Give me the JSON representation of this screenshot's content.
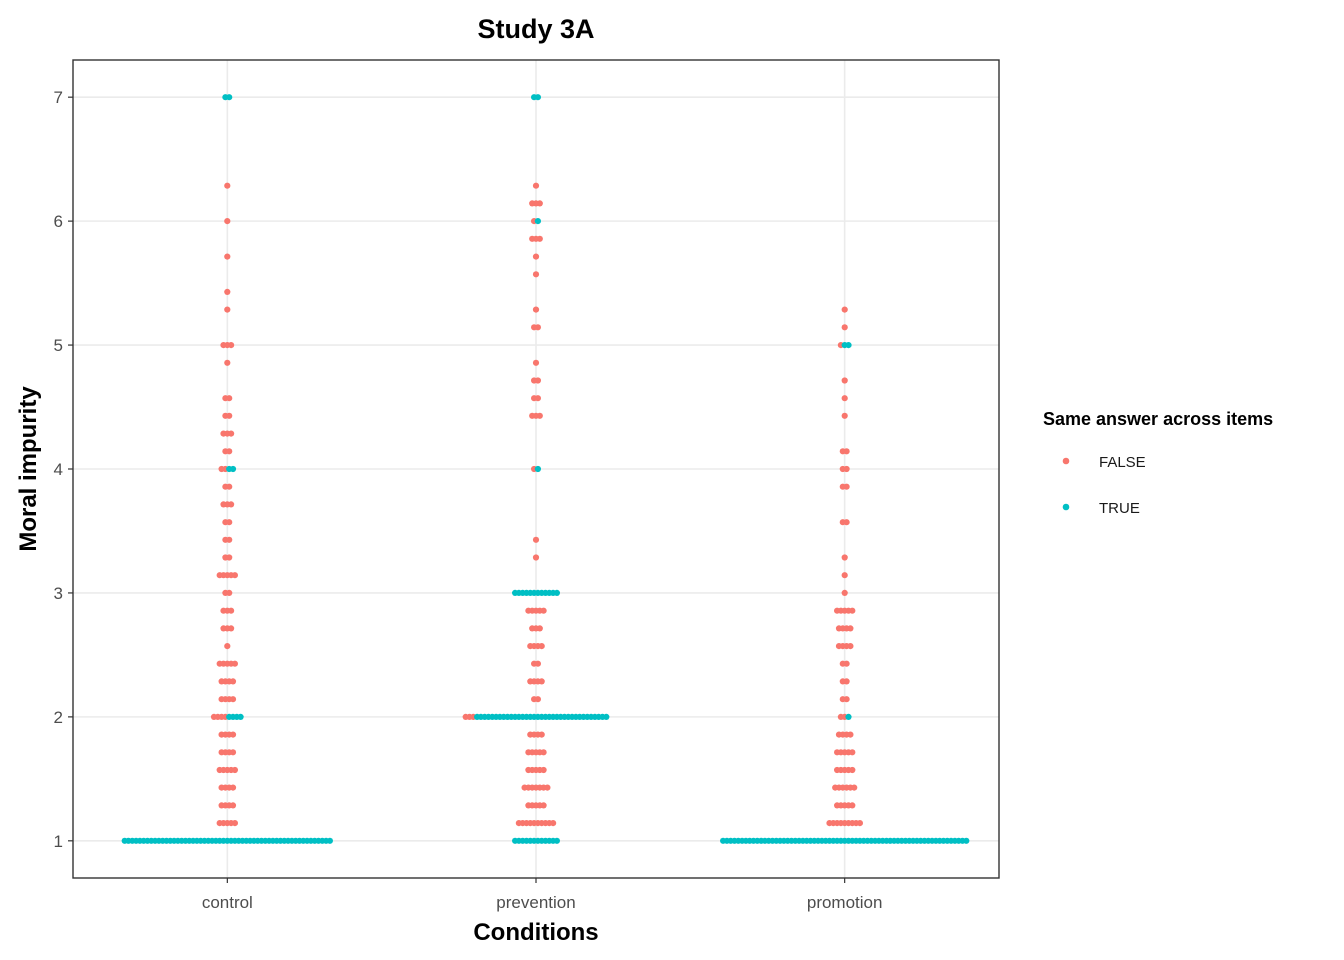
{
  "chart_data": {
    "type": "scatter",
    "subtype": "dotplot",
    "title": "Study 3A",
    "xlabel": "Conditions",
    "ylabel": "Moral impurity",
    "categories": [
      "control",
      "prevention",
      "promotion"
    ],
    "ylim": [
      0.7,
      7.3
    ],
    "yticks": [
      "1",
      "2",
      "3",
      "4",
      "5",
      "6",
      "7"
    ],
    "grid": true,
    "legend": {
      "title": "Same answer across items",
      "placement": "right",
      "entries": [
        {
          "label": "FALSE",
          "color": "#F8766D"
        },
        {
          "label": "TRUE",
          "color": "#00BFC4"
        }
      ]
    },
    "series": [
      {
        "name": "FALSE",
        "color": "#F8766D",
        "bins": {
          "control": [
            [
              1.143,
              5
            ],
            [
              1.286,
              4
            ],
            [
              1.429,
              4
            ],
            [
              1.571,
              5
            ],
            [
              1.714,
              4
            ],
            [
              1.857,
              4
            ],
            [
              2.0,
              4
            ],
            [
              2.143,
              4
            ],
            [
              2.286,
              4
            ],
            [
              2.429,
              5
            ],
            [
              2.571,
              1
            ],
            [
              2.714,
              3
            ],
            [
              2.857,
              3
            ],
            [
              3.0,
              2
            ],
            [
              3.143,
              5
            ],
            [
              3.286,
              2
            ],
            [
              3.429,
              2
            ],
            [
              3.571,
              2
            ],
            [
              3.714,
              3
            ],
            [
              3.857,
              2
            ],
            [
              4.0,
              2
            ],
            [
              4.143,
              2
            ],
            [
              4.286,
              3
            ],
            [
              4.429,
              2
            ],
            [
              4.571,
              2
            ],
            [
              4.857,
              1
            ],
            [
              5.0,
              3
            ],
            [
              5.286,
              1
            ],
            [
              5.429,
              1
            ],
            [
              5.714,
              1
            ],
            [
              6.0,
              1
            ],
            [
              6.286,
              1
            ]
          ],
          "prevention": [
            [
              1.143,
              10
            ],
            [
              1.286,
              5
            ],
            [
              1.429,
              7
            ],
            [
              1.571,
              5
            ],
            [
              1.714,
              5
            ],
            [
              1.857,
              4
            ],
            [
              2.0,
              3
            ],
            [
              2.143,
              2
            ],
            [
              2.286,
              4
            ],
            [
              2.429,
              2
            ],
            [
              2.571,
              4
            ],
            [
              2.714,
              3
            ],
            [
              2.857,
              5
            ],
            [
              3.286,
              1
            ],
            [
              3.429,
              1
            ],
            [
              4.0,
              1
            ],
            [
              4.429,
              3
            ],
            [
              4.571,
              2
            ],
            [
              4.714,
              2
            ],
            [
              4.857,
              1
            ],
            [
              5.143,
              2
            ],
            [
              5.286,
              1
            ],
            [
              5.571,
              1
            ],
            [
              5.714,
              1
            ],
            [
              5.857,
              3
            ],
            [
              6.0,
              1
            ],
            [
              6.143,
              3
            ],
            [
              6.286,
              1
            ]
          ],
          "promotion": [
            [
              1.143,
              9
            ],
            [
              1.286,
              5
            ],
            [
              1.429,
              6
            ],
            [
              1.571,
              5
            ],
            [
              1.714,
              5
            ],
            [
              1.857,
              4
            ],
            [
              2.0,
              2
            ],
            [
              2.143,
              2
            ],
            [
              2.286,
              2
            ],
            [
              2.429,
              2
            ],
            [
              2.571,
              4
            ],
            [
              2.714,
              4
            ],
            [
              2.857,
              5
            ],
            [
              3.0,
              1
            ],
            [
              3.143,
              1
            ],
            [
              3.286,
              1
            ],
            [
              3.571,
              2
            ],
            [
              3.857,
              2
            ],
            [
              4.0,
              2
            ],
            [
              4.143,
              2
            ],
            [
              4.429,
              1
            ],
            [
              4.571,
              1
            ],
            [
              4.714,
              1
            ],
            [
              5.0,
              1
            ],
            [
              5.143,
              1
            ],
            [
              5.286,
              1
            ]
          ]
        }
      },
      {
        "name": "TRUE",
        "color": "#00BFC4",
        "bins": {
          "control": [
            [
              1.0,
              55
            ],
            [
              2.0,
              4
            ],
            [
              4.0,
              2
            ],
            [
              7.0,
              2
            ]
          ],
          "prevention": [
            [
              1.0,
              12
            ],
            [
              2.0,
              35
            ],
            [
              3.0,
              12
            ],
            [
              4.0,
              1
            ],
            [
              6.0,
              1
            ],
            [
              7.0,
              2
            ]
          ],
          "promotion": [
            [
              1.0,
              65
            ],
            [
              2.0,
              1
            ],
            [
              5.0,
              2
            ]
          ]
        }
      }
    ]
  }
}
